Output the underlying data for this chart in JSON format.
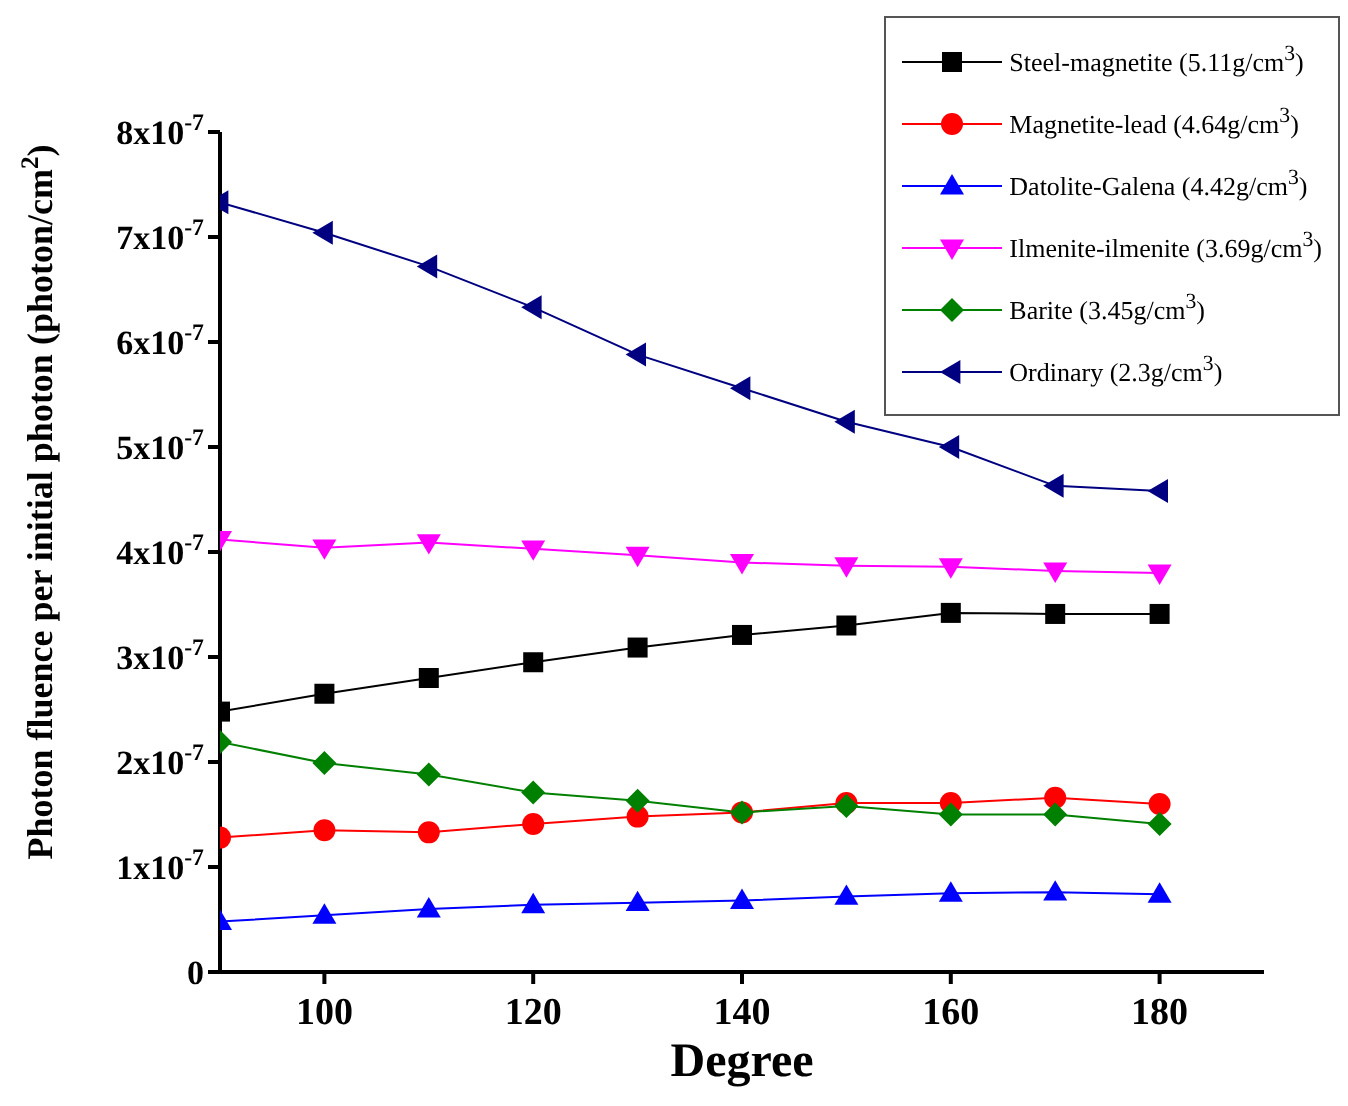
{
  "chart_data": {
    "type": "line",
    "xlabel": "Degree",
    "ylabel": "Photon fluence per initial photon (photon/cm$^{2}$)",
    "x": [
      90,
      100,
      110,
      120,
      130,
      140,
      150,
      160,
      170,
      180
    ],
    "series": [
      {
        "name": "Steel-magnetite (5.11g/cm$^{3}$)",
        "color": "#000000",
        "marker": "square",
        "values": [
          2.48e-07,
          2.65e-07,
          2.8e-07,
          2.95e-07,
          3.09e-07,
          3.21e-07,
          3.3e-07,
          3.42e-07,
          3.41e-07,
          3.41e-07
        ]
      },
      {
        "name": "Magnetite-lead (4.64g/cm$^{3}$)",
        "color": "#ff0000",
        "marker": "circle",
        "values": [
          1.28e-07,
          1.35e-07,
          1.33e-07,
          1.41e-07,
          1.48e-07,
          1.52e-07,
          1.61e-07,
          1.61e-07,
          1.66e-07,
          1.6e-07
        ]
      },
      {
        "name": "Datolite-Galena (4.42g/cm$^{3}$)",
        "color": "#0000ff",
        "marker": "triangle",
        "values": [
          4.8e-08,
          5.4e-08,
          6e-08,
          6.4e-08,
          6.6e-08,
          6.8e-08,
          7.2e-08,
          7.5e-08,
          7.6e-08,
          7.4e-08
        ]
      },
      {
        "name": "Ilmenite-ilmenite (3.69g/cm$^{3}$)",
        "color": "#ff00ff",
        "marker": "triangle-down",
        "values": [
          4.12e-07,
          4.04e-07,
          4.09e-07,
          4.03e-07,
          3.97e-07,
          3.9e-07,
          3.87e-07,
          3.86e-07,
          3.82e-07,
          3.8e-07
        ]
      },
      {
        "name": "Barite (3.45g/cm$^{3}$)",
        "color": "#008000",
        "marker": "diamond",
        "values": [
          2.19e-07,
          1.99e-07,
          1.88e-07,
          1.71e-07,
          1.63e-07,
          1.52e-07,
          1.58e-07,
          1.5e-07,
          1.5e-07,
          1.41e-07
        ]
      },
      {
        "name": "Ordinary (2.3g/cm$^{3}$)",
        "color": "#000080",
        "marker": "triangle-left",
        "values": [
          7.33e-07,
          7.04e-07,
          6.72e-07,
          6.33e-07,
          5.88e-07,
          5.56e-07,
          5.24e-07,
          5e-07,
          4.63e-07,
          4.58e-07
        ]
      }
    ],
    "xlim": [
      90,
      190
    ],
    "xticks": [
      100,
      120,
      140,
      160,
      180
    ],
    "ylim": [
      0,
      8e-07
    ],
    "yticks": [
      0,
      {
        "value": 1e-07,
        "label": "1x10$^{-7}$"
      },
      {
        "value": 2e-07,
        "label": "2x10$^{-7}$"
      },
      {
        "value": 3e-07,
        "label": "3x10$^{-7}$"
      },
      {
        "value": 4e-07,
        "label": "4x10$^{-7}$"
      },
      {
        "value": 5e-07,
        "label": "5x10$^{-7}$"
      },
      {
        "value": 6e-07,
        "label": "6x10$^{-7}$"
      },
      {
        "value": 7e-07,
        "label": "7x10$^{-7}$"
      },
      {
        "value": 8e-07,
        "label": "8x10$^{-7}$"
      }
    ],
    "grid": false,
    "legend": "top right",
    "line_style": "solid"
  }
}
